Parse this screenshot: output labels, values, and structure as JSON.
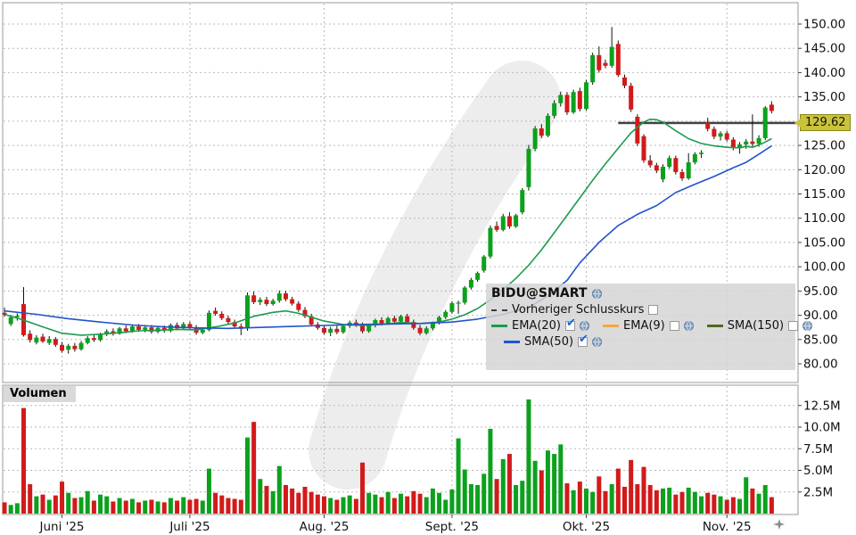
{
  "window": {
    "title": "BIDU@SMART chart"
  },
  "legend": {
    "title": "BIDU@SMART",
    "items": [
      {
        "label": "Vorheriger Schlusskurs",
        "color": "#3c3c3c",
        "style": "dashed",
        "check": "",
        "globe": false
      },
      {
        "label": "EMA(20)",
        "color": "#1e9a4e",
        "style": "solid",
        "check": "✔",
        "globe": true
      },
      {
        "label": "EMA(9)",
        "color": "#edaa3e",
        "style": "solid",
        "check": "",
        "globe": true
      },
      {
        "label": "SMA(150)",
        "color": "#4d6b1f",
        "style": "solid",
        "check": "",
        "globe": true
      },
      {
        "label": "SMA(50)",
        "color": "#2253cc",
        "style": "solid",
        "check": "✔",
        "globe": true
      }
    ]
  },
  "volume_pane": {
    "label": "Volumen"
  },
  "price_axis": {
    "last_price_label": "129.62",
    "tag_color": "#c9c33a",
    "ticks": [
      {
        "v": 150,
        "label": "150.00"
      },
      {
        "v": 145,
        "label": "145.00"
      },
      {
        "v": 140,
        "label": "140.00"
      },
      {
        "v": 135,
        "label": "135.00"
      },
      {
        "v": 125,
        "label": "125.00"
      },
      {
        "v": 120,
        "label": "120.00"
      },
      {
        "v": 115,
        "label": "115.00"
      },
      {
        "v": 110,
        "label": "110.00"
      },
      {
        "v": 105,
        "label": "105.00"
      },
      {
        "v": 100,
        "label": "100.00"
      },
      {
        "v": 95,
        "label": "95.00"
      },
      {
        "v": 90,
        "label": "90.00"
      },
      {
        "v": 85,
        "label": "85.00"
      },
      {
        "v": 80,
        "label": "80.00"
      }
    ]
  },
  "volume_axis": {
    "ticks": [
      {
        "v": 12.5,
        "label": "12.5M"
      },
      {
        "v": 10.0,
        "label": "10.0M"
      },
      {
        "v": 7.5,
        "label": "7.5M"
      },
      {
        "v": 5.0,
        "label": "5.0M"
      },
      {
        "v": 2.5,
        "label": "2.5M"
      }
    ]
  },
  "time_axis": {
    "ticks": [
      {
        "label": "Juni '25",
        "index": 9
      },
      {
        "label": "Juli '25",
        "index": 29
      },
      {
        "label": "Aug. '25",
        "index": 50
      },
      {
        "label": "Sept. '25",
        "index": 70
      },
      {
        "label": "Okt. '25",
        "index": 91
      },
      {
        "label": "Nov. '25",
        "index": 113
      }
    ]
  },
  "chart_data": {
    "type": "candlestick",
    "title": "BIDU@SMART daily chart with volume",
    "price_ylim": [
      80,
      150
    ],
    "volume_ylim": [
      0,
      14.8
    ],
    "grid": true,
    "up_color": "#0ba11c",
    "down_color": "#d21a1a",
    "prev_close": {
      "value": 129.62,
      "start_index": 96,
      "label": "Vorheriger Schlusskurs"
    },
    "candles": [
      [
        90.5,
        91.6,
        89.7,
        90.1,
        1.3
      ],
      [
        88.2,
        90.1,
        87.8,
        89.6,
        1.0
      ],
      [
        89.6,
        90.4,
        88.9,
        89.9,
        1.2
      ],
      [
        92.3,
        95.8,
        85.6,
        85.9,
        12.2
      ],
      [
        86.2,
        86.9,
        84.4,
        84.9,
        3.4
      ],
      [
        84.4,
        85.9,
        84.0,
        85.4,
        2.0
      ],
      [
        85.6,
        86.2,
        84.3,
        84.6,
        2.2
      ],
      [
        84.3,
        85.7,
        83.9,
        85.1,
        1.6
      ],
      [
        85.1,
        85.5,
        83.5,
        83.9,
        2.1
      ],
      [
        83.9,
        84.5,
        82.3,
        82.7,
        3.7
      ],
      [
        82.9,
        84.1,
        82.1,
        83.7,
        2.4
      ],
      [
        83.7,
        84.3,
        82.5,
        83.0,
        1.8
      ],
      [
        83.0,
        84.7,
        82.7,
        84.3,
        1.9
      ],
      [
        84.3,
        85.7,
        84.0,
        85.3,
        2.6
      ],
      [
        85.3,
        85.9,
        84.5,
        84.9,
        1.5
      ],
      [
        84.9,
        86.4,
        84.6,
        86.1,
        2.2
      ],
      [
        86.1,
        87.1,
        85.7,
        86.7,
        2.0
      ],
      [
        86.7,
        87.3,
        85.8,
        86.2,
        1.4
      ],
      [
        86.2,
        87.6,
        86.0,
        87.3,
        1.8
      ],
      [
        87.3,
        87.9,
        86.3,
        86.7,
        1.5
      ],
      [
        86.7,
        88.1,
        86.4,
        87.7,
        1.7
      ],
      [
        87.7,
        88.2,
        86.6,
        87.0,
        1.3
      ],
      [
        87.0,
        88.0,
        86.5,
        87.5,
        1.5
      ],
      [
        87.5,
        88.0,
        86.2,
        86.6,
        1.6
      ],
      [
        86.6,
        87.8,
        86.3,
        87.4,
        1.4
      ],
      [
        87.4,
        87.9,
        86.4,
        86.8,
        1.3
      ],
      [
        86.8,
        88.3,
        86.5,
        88.0,
        1.8
      ],
      [
        88.0,
        88.5,
        86.9,
        87.3,
        1.5
      ],
      [
        87.3,
        88.6,
        87.0,
        88.2,
        1.9
      ],
      [
        88.2,
        88.7,
        87.1,
        87.5,
        1.6
      ],
      [
        87.5,
        88.0,
        86.0,
        86.4,
        1.7
      ],
      [
        86.4,
        87.4,
        86.1,
        87.0,
        1.5
      ],
      [
        87.0,
        91.0,
        86.7,
        90.5,
        5.2
      ],
      [
        90.9,
        91.6,
        89.9,
        90.3,
        2.4
      ],
      [
        90.3,
        90.8,
        89.0,
        89.4,
        2.1
      ],
      [
        89.4,
        89.9,
        88.2,
        88.6,
        1.8
      ],
      [
        88.6,
        89.1,
        87.3,
        87.7,
        1.7
      ],
      [
        87.7,
        88.3,
        85.9,
        87.2,
        1.6
      ],
      [
        87.3,
        94.7,
        86.8,
        94.1,
        8.8
      ],
      [
        94.1,
        94.9,
        92.3,
        92.7,
        10.6
      ],
      [
        92.7,
        93.7,
        92.1,
        93.2,
        4.0
      ],
      [
        93.2,
        93.8,
        91.9,
        92.3,
        3.2
      ],
      [
        92.3,
        93.4,
        92.0,
        93.0,
        2.6
      ],
      [
        93.0,
        95.1,
        92.6,
        94.5,
        5.5
      ],
      [
        94.5,
        95.0,
        92.9,
        93.3,
        3.3
      ],
      [
        93.3,
        93.8,
        92.0,
        92.4,
        2.9
      ],
      [
        92.4,
        92.9,
        90.7,
        91.1,
        2.4
      ],
      [
        91.1,
        91.7,
        89.4,
        89.8,
        3.1
      ],
      [
        89.8,
        90.3,
        87.7,
        88.1,
        2.5
      ],
      [
        88.1,
        88.6,
        87.0,
        87.4,
        2.2
      ],
      [
        87.4,
        87.9,
        86.0,
        86.4,
        2.0
      ],
      [
        86.4,
        87.6,
        85.7,
        87.2,
        1.8
      ],
      [
        87.2,
        87.8,
        86.1,
        86.5,
        1.6
      ],
      [
        86.5,
        88.1,
        86.2,
        87.8,
        1.9
      ],
      [
        87.8,
        88.9,
        87.4,
        88.5,
        2.1
      ],
      [
        88.5,
        89.1,
        87.6,
        88.0,
        1.7
      ],
      [
        88.0,
        88.5,
        86.3,
        86.7,
        5.9
      ],
      [
        86.7,
        88.2,
        86.4,
        87.9,
        2.4
      ],
      [
        87.9,
        89.3,
        87.5,
        89.0,
        2.2
      ],
      [
        89.0,
        89.6,
        87.9,
        88.3,
        1.9
      ],
      [
        88.3,
        89.7,
        88.0,
        89.4,
        2.5
      ],
      [
        89.4,
        89.9,
        88.3,
        88.7,
        1.8
      ],
      [
        88.7,
        90.1,
        88.4,
        89.8,
        2.3
      ],
      [
        89.8,
        90.3,
        88.2,
        88.6,
        2.0
      ],
      [
        88.6,
        89.1,
        87.0,
        87.4,
        2.6
      ],
      [
        87.4,
        88.0,
        85.9,
        86.3,
        2.3
      ],
      [
        86.3,
        87.7,
        86.0,
        87.3,
        1.9
      ],
      [
        87.3,
        88.7,
        86.9,
        88.4,
        2.9
      ],
      [
        88.4,
        89.9,
        88.1,
        89.6,
        2.4
      ],
      [
        89.6,
        91.1,
        89.2,
        90.7,
        1.6
      ],
      [
        90.7,
        92.9,
        90.3,
        92.5,
        2.8
      ],
      [
        92.5,
        93.0,
        90.3,
        92.6,
        8.7
      ],
      [
        92.6,
        96.0,
        92.2,
        95.7,
        5.1
      ],
      [
        95.7,
        97.7,
        95.3,
        97.3,
        3.4
      ],
      [
        97.3,
        99.0,
        96.9,
        98.7,
        3.3
      ],
      [
        99.2,
        102.4,
        98.8,
        102.1,
        4.6
      ],
      [
        102.1,
        108.5,
        101.7,
        108.0,
        9.8
      ],
      [
        108.4,
        109.3,
        107.2,
        107.6,
        4.0
      ],
      [
        107.6,
        110.9,
        107.3,
        110.4,
        6.3
      ],
      [
        110.4,
        111.2,
        107.8,
        108.3,
        6.9
      ],
      [
        108.3,
        110.9,
        108.0,
        110.6,
        3.3
      ],
      [
        111.2,
        116.2,
        110.8,
        115.8,
        3.8
      ],
      [
        116.4,
        125.1,
        115.7,
        124.3,
        13.2
      ],
      [
        124.3,
        129.0,
        123.8,
        128.5,
        6.1
      ],
      [
        128.5,
        129.4,
        126.5,
        127.0,
        5.0
      ],
      [
        127.0,
        131.6,
        126.7,
        131.1,
        7.3
      ],
      [
        131.1,
        134.3,
        130.6,
        133.7,
        6.9
      ],
      [
        133.7,
        136.1,
        133.0,
        135.4,
        8.0
      ],
      [
        135.4,
        136.0,
        131.3,
        131.8,
        3.5
      ],
      [
        131.8,
        136.5,
        131.5,
        136.0,
        2.7
      ],
      [
        136.2,
        136.9,
        132.0,
        132.5,
        3.7
      ],
      [
        132.5,
        138.5,
        132.2,
        138.0,
        2.9
      ],
      [
        138.0,
        144.1,
        137.5,
        143.6,
        2.5
      ],
      [
        143.6,
        145.4,
        140.0,
        140.5,
        4.3
      ],
      [
        142.0,
        142.7,
        140.9,
        141.4,
        2.6
      ],
      [
        141.4,
        149.4,
        141.0,
        145.3,
        3.4
      ],
      [
        145.9,
        146.6,
        139.1,
        139.5,
        5.2
      ],
      [
        139.0,
        139.6,
        136.8,
        137.3,
        3.1
      ],
      [
        137.3,
        137.9,
        131.9,
        132.4,
        6.2
      ],
      [
        130.9,
        131.4,
        124.9,
        125.4,
        3.4
      ],
      [
        126.9,
        127.3,
        121.4,
        121.9,
        5.4
      ],
      [
        121.9,
        123.0,
        120.4,
        120.9,
        3.3
      ],
      [
        120.9,
        121.4,
        119.3,
        119.8,
        2.7
      ],
      [
        118.0,
        121.1,
        117.4,
        120.6,
        2.9
      ],
      [
        120.6,
        122.9,
        120.2,
        122.4,
        3.0
      ],
      [
        122.4,
        122.9,
        119.0,
        119.5,
        2.2
      ],
      [
        119.5,
        120.1,
        117.7,
        118.2,
        2.5
      ],
      [
        118.2,
        123.4,
        117.9,
        121.5,
        3.0
      ],
      [
        121.5,
        123.6,
        121.1,
        123.2,
        2.5
      ],
      [
        123.2,
        124.0,
        122.4,
        123.5,
        2.0
      ],
      [
        129.7,
        130.7,
        127.9,
        128.4,
        2.4
      ],
      [
        128.4,
        128.9,
        126.3,
        126.8,
        2.2
      ],
      [
        126.8,
        127.9,
        126.0,
        127.5,
        2.0
      ],
      [
        127.5,
        128.0,
        125.8,
        126.2,
        1.6
      ],
      [
        126.2,
        126.7,
        124.0,
        124.5,
        1.9
      ],
      [
        124.5,
        125.7,
        123.3,
        125.2,
        1.7
      ],
      [
        125.2,
        126.3,
        124.3,
        125.8,
        4.2
      ],
      [
        125.8,
        131.4,
        124.8,
        125.3,
        2.9
      ],
      [
        125.3,
        127.1,
        124.7,
        126.5,
        2.3
      ],
      [
        126.5,
        133.1,
        126.1,
        132.8,
        3.3
      ],
      [
        133.4,
        134.1,
        131.6,
        132.1,
        1.9
      ]
    ],
    "overlays": [
      {
        "name": "EMA(20)",
        "color": "#1e9a4e",
        "points": [
          [
            0,
            90.2
          ],
          [
            3,
            89.0
          ],
          [
            6,
            87.6
          ],
          [
            9,
            86.3
          ],
          [
            12,
            85.9
          ],
          [
            15,
            86.1
          ],
          [
            18,
            86.4
          ],
          [
            21,
            86.8
          ],
          [
            24,
            86.9
          ],
          [
            27,
            87.1
          ],
          [
            30,
            87.0
          ],
          [
            33,
            87.6
          ],
          [
            36,
            88.4
          ],
          [
            39,
            89.8
          ],
          [
            42,
            90.6
          ],
          [
            44,
            90.9
          ],
          [
            46,
            90.4
          ],
          [
            48,
            89.6
          ],
          [
            50,
            88.8
          ],
          [
            53,
            88.1
          ],
          [
            56,
            87.9
          ],
          [
            59,
            88.1
          ],
          [
            62,
            88.5
          ],
          [
            65,
            88.3
          ],
          [
            68,
            88.6
          ],
          [
            70,
            89.2
          ],
          [
            72,
            90.1
          ],
          [
            74,
            91.4
          ],
          [
            76,
            93.2
          ],
          [
            78,
            95.3
          ],
          [
            80,
            97.6
          ],
          [
            82,
            100.3
          ],
          [
            84,
            103.5
          ],
          [
            86,
            107.0
          ],
          [
            88,
            110.6
          ],
          [
            90,
            114.2
          ],
          [
            92,
            117.8
          ],
          [
            94,
            121.2
          ],
          [
            96,
            124.4
          ],
          [
            98,
            127.6
          ],
          [
            100,
            129.8
          ],
          [
            101,
            130.4
          ],
          [
            102,
            130.3
          ],
          [
            103,
            129.8
          ],
          [
            105,
            128.0
          ],
          [
            107,
            126.4
          ],
          [
            109,
            125.4
          ],
          [
            111,
            124.9
          ],
          [
            113,
            124.6
          ],
          [
            115,
            124.5
          ],
          [
            116,
            124.8
          ],
          [
            117,
            124.6
          ],
          [
            118,
            125.1
          ],
          [
            119,
            125.7
          ],
          [
            120,
            126.4
          ]
        ]
      },
      {
        "name": "SMA(50)",
        "color": "#2253cc",
        "points": [
          [
            0,
            90.9
          ],
          [
            5,
            90.2
          ],
          [
            10,
            89.3
          ],
          [
            15,
            88.6
          ],
          [
            20,
            88.0
          ],
          [
            25,
            87.6
          ],
          [
            30,
            87.4
          ],
          [
            35,
            87.3
          ],
          [
            40,
            87.5
          ],
          [
            45,
            87.7
          ],
          [
            50,
            87.9
          ],
          [
            55,
            88.1
          ],
          [
            60,
            88.2
          ],
          [
            65,
            88.3
          ],
          [
            70,
            88.6
          ],
          [
            74,
            89.2
          ],
          [
            78,
            90.2
          ],
          [
            82,
            91.6
          ],
          [
            85,
            94.0
          ],
          [
            88,
            97.2
          ],
          [
            90,
            100.8
          ],
          [
            93,
            105.0
          ],
          [
            96,
            108.5
          ],
          [
            99,
            110.8
          ],
          [
            102,
            112.6
          ],
          [
            105,
            115.3
          ],
          [
            108,
            117.0
          ],
          [
            111,
            118.6
          ],
          [
            114,
            120.4
          ],
          [
            116,
            121.5
          ],
          [
            118,
            123.2
          ],
          [
            120,
            124.9
          ]
        ]
      }
    ]
  }
}
